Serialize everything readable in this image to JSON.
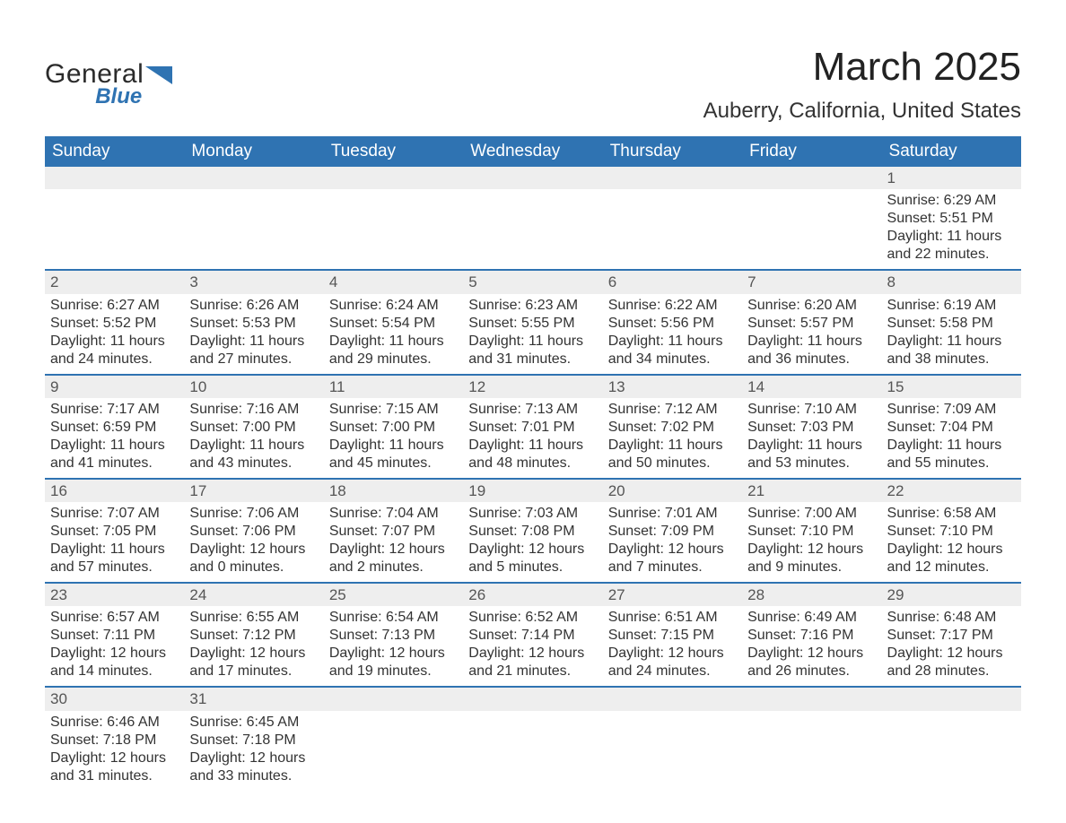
{
  "brand": {
    "part1": "General",
    "part2": "Blue",
    "mark_color": "#2f73b2",
    "text_color": "#2b2b2b"
  },
  "title": "March 2025",
  "location": "Auberry, California, United States",
  "colors": {
    "header_bg": "#2f73b2",
    "header_fg": "#ffffff",
    "row_sep": "#2f73b2",
    "daynum_bg": "#eeeeee",
    "text": "#333333"
  },
  "weekdays": [
    "Sunday",
    "Monday",
    "Tuesday",
    "Wednesday",
    "Thursday",
    "Friday",
    "Saturday"
  ],
  "weeks": [
    {
      "nums": [
        "",
        "",
        "",
        "",
        "",
        "",
        "1"
      ],
      "cells": [
        null,
        null,
        null,
        null,
        null,
        null,
        {
          "sunrise": "Sunrise: 6:29 AM",
          "sunset": "Sunset: 5:51 PM",
          "day1": "Daylight: 11 hours",
          "day2": "and 22 minutes."
        }
      ]
    },
    {
      "nums": [
        "2",
        "3",
        "4",
        "5",
        "6",
        "7",
        "8"
      ],
      "cells": [
        {
          "sunrise": "Sunrise: 6:27 AM",
          "sunset": "Sunset: 5:52 PM",
          "day1": "Daylight: 11 hours",
          "day2": "and 24 minutes."
        },
        {
          "sunrise": "Sunrise: 6:26 AM",
          "sunset": "Sunset: 5:53 PM",
          "day1": "Daylight: 11 hours",
          "day2": "and 27 minutes."
        },
        {
          "sunrise": "Sunrise: 6:24 AM",
          "sunset": "Sunset: 5:54 PM",
          "day1": "Daylight: 11 hours",
          "day2": "and 29 minutes."
        },
        {
          "sunrise": "Sunrise: 6:23 AM",
          "sunset": "Sunset: 5:55 PM",
          "day1": "Daylight: 11 hours",
          "day2": "and 31 minutes."
        },
        {
          "sunrise": "Sunrise: 6:22 AM",
          "sunset": "Sunset: 5:56 PM",
          "day1": "Daylight: 11 hours",
          "day2": "and 34 minutes."
        },
        {
          "sunrise": "Sunrise: 6:20 AM",
          "sunset": "Sunset: 5:57 PM",
          "day1": "Daylight: 11 hours",
          "day2": "and 36 minutes."
        },
        {
          "sunrise": "Sunrise: 6:19 AM",
          "sunset": "Sunset: 5:58 PM",
          "day1": "Daylight: 11 hours",
          "day2": "and 38 minutes."
        }
      ]
    },
    {
      "nums": [
        "9",
        "10",
        "11",
        "12",
        "13",
        "14",
        "15"
      ],
      "cells": [
        {
          "sunrise": "Sunrise: 7:17 AM",
          "sunset": "Sunset: 6:59 PM",
          "day1": "Daylight: 11 hours",
          "day2": "and 41 minutes."
        },
        {
          "sunrise": "Sunrise: 7:16 AM",
          "sunset": "Sunset: 7:00 PM",
          "day1": "Daylight: 11 hours",
          "day2": "and 43 minutes."
        },
        {
          "sunrise": "Sunrise: 7:15 AM",
          "sunset": "Sunset: 7:00 PM",
          "day1": "Daylight: 11 hours",
          "day2": "and 45 minutes."
        },
        {
          "sunrise": "Sunrise: 7:13 AM",
          "sunset": "Sunset: 7:01 PM",
          "day1": "Daylight: 11 hours",
          "day2": "and 48 minutes."
        },
        {
          "sunrise": "Sunrise: 7:12 AM",
          "sunset": "Sunset: 7:02 PM",
          "day1": "Daylight: 11 hours",
          "day2": "and 50 minutes."
        },
        {
          "sunrise": "Sunrise: 7:10 AM",
          "sunset": "Sunset: 7:03 PM",
          "day1": "Daylight: 11 hours",
          "day2": "and 53 minutes."
        },
        {
          "sunrise": "Sunrise: 7:09 AM",
          "sunset": "Sunset: 7:04 PM",
          "day1": "Daylight: 11 hours",
          "day2": "and 55 minutes."
        }
      ]
    },
    {
      "nums": [
        "16",
        "17",
        "18",
        "19",
        "20",
        "21",
        "22"
      ],
      "cells": [
        {
          "sunrise": "Sunrise: 7:07 AM",
          "sunset": "Sunset: 7:05 PM",
          "day1": "Daylight: 11 hours",
          "day2": "and 57 minutes."
        },
        {
          "sunrise": "Sunrise: 7:06 AM",
          "sunset": "Sunset: 7:06 PM",
          "day1": "Daylight: 12 hours",
          "day2": "and 0 minutes."
        },
        {
          "sunrise": "Sunrise: 7:04 AM",
          "sunset": "Sunset: 7:07 PM",
          "day1": "Daylight: 12 hours",
          "day2": "and 2 minutes."
        },
        {
          "sunrise": "Sunrise: 7:03 AM",
          "sunset": "Sunset: 7:08 PM",
          "day1": "Daylight: 12 hours",
          "day2": "and 5 minutes."
        },
        {
          "sunrise": "Sunrise: 7:01 AM",
          "sunset": "Sunset: 7:09 PM",
          "day1": "Daylight: 12 hours",
          "day2": "and 7 minutes."
        },
        {
          "sunrise": "Sunrise: 7:00 AM",
          "sunset": "Sunset: 7:10 PM",
          "day1": "Daylight: 12 hours",
          "day2": "and 9 minutes."
        },
        {
          "sunrise": "Sunrise: 6:58 AM",
          "sunset": "Sunset: 7:10 PM",
          "day1": "Daylight: 12 hours",
          "day2": "and 12 minutes."
        }
      ]
    },
    {
      "nums": [
        "23",
        "24",
        "25",
        "26",
        "27",
        "28",
        "29"
      ],
      "cells": [
        {
          "sunrise": "Sunrise: 6:57 AM",
          "sunset": "Sunset: 7:11 PM",
          "day1": "Daylight: 12 hours",
          "day2": "and 14 minutes."
        },
        {
          "sunrise": "Sunrise: 6:55 AM",
          "sunset": "Sunset: 7:12 PM",
          "day1": "Daylight: 12 hours",
          "day2": "and 17 minutes."
        },
        {
          "sunrise": "Sunrise: 6:54 AM",
          "sunset": "Sunset: 7:13 PM",
          "day1": "Daylight: 12 hours",
          "day2": "and 19 minutes."
        },
        {
          "sunrise": "Sunrise: 6:52 AM",
          "sunset": "Sunset: 7:14 PM",
          "day1": "Daylight: 12 hours",
          "day2": "and 21 minutes."
        },
        {
          "sunrise": "Sunrise: 6:51 AM",
          "sunset": "Sunset: 7:15 PM",
          "day1": "Daylight: 12 hours",
          "day2": "and 24 minutes."
        },
        {
          "sunrise": "Sunrise: 6:49 AM",
          "sunset": "Sunset: 7:16 PM",
          "day1": "Daylight: 12 hours",
          "day2": "and 26 minutes."
        },
        {
          "sunrise": "Sunrise: 6:48 AM",
          "sunset": "Sunset: 7:17 PM",
          "day1": "Daylight: 12 hours",
          "day2": "and 28 minutes."
        }
      ]
    },
    {
      "nums": [
        "30",
        "31",
        "",
        "",
        "",
        "",
        ""
      ],
      "cells": [
        {
          "sunrise": "Sunrise: 6:46 AM",
          "sunset": "Sunset: 7:18 PM",
          "day1": "Daylight: 12 hours",
          "day2": "and 31 minutes."
        },
        {
          "sunrise": "Sunrise: 6:45 AM",
          "sunset": "Sunset: 7:18 PM",
          "day1": "Daylight: 12 hours",
          "day2": "and 33 minutes."
        },
        null,
        null,
        null,
        null,
        null
      ]
    }
  ]
}
